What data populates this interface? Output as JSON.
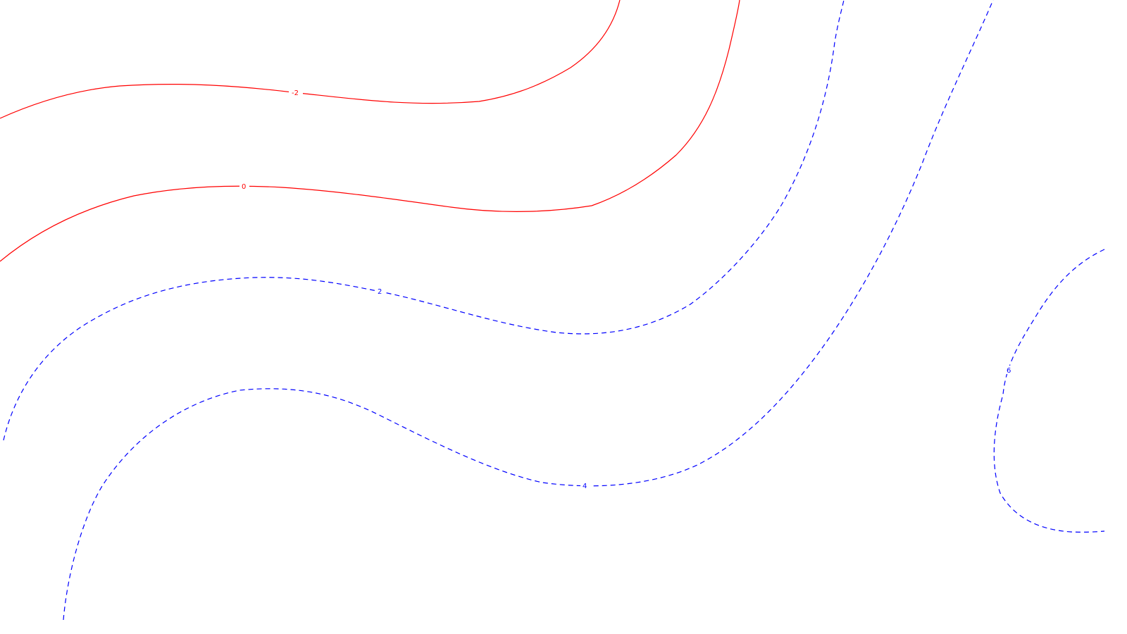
{
  "contours": [
    {
      "id": "c-2-solid",
      "label": "-2",
      "style": "solid",
      "color": "#ff0000"
    },
    {
      "id": "c0",
      "label": "0",
      "style": "solid",
      "color": "#ff0000"
    },
    {
      "id": "c2",
      "label": "2",
      "style": "dashed",
      "color": "#0000ff"
    },
    {
      "id": "c4",
      "label": "4",
      "style": "dashed",
      "color": "#0000ff"
    },
    {
      "id": "c6",
      "label": "6",
      "style": "dashed",
      "color": "#0000ff"
    }
  ]
}
